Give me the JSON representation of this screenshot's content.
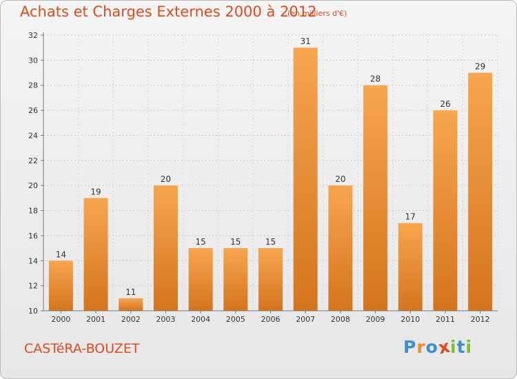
{
  "header": {
    "title": "Achats et Charges Externes 2000 à 2012",
    "unit": "(en milliers d'€)"
  },
  "footer": {
    "commune": "CASTéRA-BOUZET",
    "logo_letters": [
      "P",
      "r",
      "o",
      "x",
      "i",
      "t",
      "i"
    ],
    "logo_colors": [
      "#3b8fd6",
      "#f28c28",
      "#3b8fd6",
      "#e04a1e",
      "#7bbf2a",
      "#3b8fd6",
      "#7bbf2a"
    ]
  },
  "colors": {
    "bar_light": "#f7a64e",
    "bar_dark": "#d4741e",
    "title": "#e04a1e"
  },
  "chart_data": {
    "type": "bar",
    "categories": [
      "2000",
      "2001",
      "2002",
      "2003",
      "2004",
      "2005",
      "2006",
      "2007",
      "2008",
      "2009",
      "2010",
      "2011",
      "2012"
    ],
    "values": [
      14,
      19,
      11,
      20,
      15,
      15,
      15,
      31,
      20,
      28,
      17,
      26,
      29
    ],
    "ylim": [
      10,
      32
    ],
    "yticks": [
      10,
      12,
      14,
      16,
      18,
      20,
      22,
      24,
      26,
      28,
      30,
      32
    ],
    "grid": true
  }
}
